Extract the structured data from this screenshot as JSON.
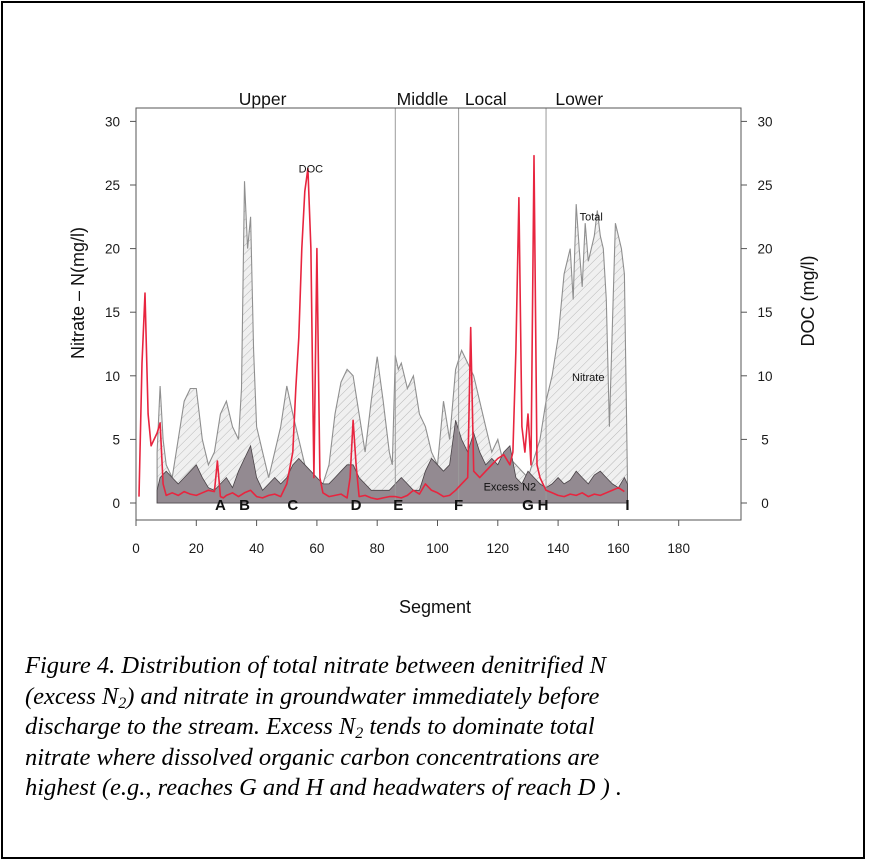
{
  "chart_data": {
    "type": "area",
    "xlabel": "Segment",
    "ylabel_left": "Nitrate – N(mg/l)",
    "ylabel_right": "DOC  (mg/l)",
    "xlim": [
      0,
      180
    ],
    "ylim_left": [
      0,
      30
    ],
    "ylim_right": [
      0,
      30
    ],
    "xticks": [
      0,
      20,
      40,
      60,
      80,
      100,
      120,
      140,
      160,
      180
    ],
    "yticks": [
      0,
      5,
      10,
      15,
      20,
      25,
      30
    ],
    "regions": [
      {
        "label": "Upper",
        "x": 42
      },
      {
        "label": "Middle",
        "x": 95
      },
      {
        "label": "Local",
        "x": 116
      },
      {
        "label": "Lower",
        "x": 147
      }
    ],
    "dividers": [
      86,
      107,
      136
    ],
    "reach_letters": [
      {
        "label": "A",
        "x": 28
      },
      {
        "label": "B",
        "x": 36
      },
      {
        "label": "C",
        "x": 52
      },
      {
        "label": "D",
        "x": 73
      },
      {
        "label": "E",
        "x": 87
      },
      {
        "label": "F",
        "x": 107
      },
      {
        "label": "G",
        "x": 130
      },
      {
        "label": "H",
        "x": 135
      },
      {
        "label": "I",
        "x": 163
      }
    ],
    "annotations": [
      {
        "text": "DOC",
        "x": 58,
        "y": 26
      },
      {
        "text": "Total",
        "x": 151,
        "y": 22.2
      },
      {
        "text": "Nitrate",
        "x": 150,
        "y": 9.6
      },
      {
        "text": "Excess N2",
        "x": 124,
        "y": 1.0
      }
    ],
    "series": [
      {
        "name": "Total",
        "x": [
          7,
          8,
          9,
          10,
          12,
          14,
          16,
          18,
          20,
          22,
          24,
          26,
          28,
          30,
          32,
          34,
          35,
          36,
          37,
          38,
          39,
          40,
          42,
          44,
          46,
          48,
          50,
          52,
          54,
          56,
          58,
          60,
          62,
          64,
          66,
          68,
          70,
          72,
          74,
          76,
          78,
          80,
          82,
          84,
          85,
          86,
          87,
          88,
          90,
          92,
          94,
          96,
          98,
          100,
          102,
          104,
          106,
          108,
          110,
          112,
          114,
          116,
          118,
          120,
          122,
          124,
          126,
          128,
          130,
          132,
          134,
          136,
          138,
          140,
          142,
          144,
          145,
          146,
          147,
          148,
          149,
          150,
          152,
          153,
          154,
          155,
          156,
          157,
          158,
          159,
          160,
          161,
          162,
          163
        ],
        "values": [
          4,
          9.2,
          5,
          3,
          2,
          5,
          8,
          9,
          9,
          5,
          3,
          4,
          7,
          8,
          6,
          5,
          9,
          25.3,
          20,
          22.5,
          12,
          6,
          4,
          2,
          4,
          6,
          9.2,
          7,
          5,
          3,
          2,
          1.5,
          1.5,
          3,
          7,
          9.5,
          10.5,
          10,
          7,
          4,
          8,
          11.5,
          8,
          4,
          3,
          11.6,
          10.5,
          11,
          9,
          10,
          7,
          6,
          4,
          3,
          8,
          5,
          10.5,
          12,
          11,
          10,
          8,
          6,
          4,
          5,
          3,
          3.5,
          3,
          2.5,
          2,
          3.5,
          5,
          8,
          10,
          13,
          18,
          20,
          16,
          23.5,
          20,
          17,
          22,
          19,
          21,
          23,
          21,
          20,
          16,
          6,
          14,
          22,
          21,
          20,
          18,
          2.2
        ]
      },
      {
        "name": "Excess N2",
        "x": [
          7,
          8,
          10,
          12,
          14,
          16,
          18,
          20,
          22,
          24,
          26,
          28,
          30,
          32,
          34,
          36,
          38,
          40,
          42,
          44,
          46,
          48,
          50,
          52,
          54,
          56,
          58,
          60,
          62,
          64,
          66,
          68,
          70,
          72,
          74,
          76,
          78,
          80,
          82,
          84,
          86,
          88,
          90,
          92,
          94,
          96,
          98,
          100,
          102,
          104,
          106,
          108,
          110,
          112,
          114,
          116,
          118,
          120,
          122,
          124,
          126,
          128,
          130,
          132,
          134,
          136,
          138,
          140,
          142,
          144,
          146,
          148,
          150,
          152,
          154,
          156,
          158,
          160,
          162,
          163
        ],
        "values": [
          1,
          2,
          2.5,
          2,
          1.5,
          2,
          2.5,
          3,
          2,
          1.2,
          1,
          1.5,
          2,
          1.2,
          2.5,
          3.5,
          4.5,
          2,
          1,
          1.5,
          2,
          1.5,
          2,
          3,
          3.5,
          3,
          2.5,
          2,
          1.5,
          1.5,
          2,
          2.5,
          3,
          3,
          2,
          1.5,
          1,
          1,
          1,
          1,
          1.5,
          2,
          1.5,
          1,
          1,
          2.5,
          3.5,
          3,
          2.5,
          3,
          6.5,
          5,
          4,
          5.5,
          4,
          3,
          3.5,
          3,
          4,
          4.5,
          2,
          1.5,
          2.5,
          2,
          1.5,
          1.2,
          1.5,
          2,
          1.5,
          1.8,
          2.5,
          2,
          1.5,
          2.2,
          2.5,
          2,
          1.5,
          1.2,
          2,
          1.5
        ]
      },
      {
        "name": "DOC",
        "x": [
          1,
          2,
          3,
          4,
          5,
          6,
          7,
          8,
          9,
          10,
          12,
          14,
          16,
          18,
          20,
          22,
          24,
          26,
          27,
          28,
          29,
          30,
          32,
          34,
          36,
          38,
          40,
          42,
          44,
          46,
          48,
          50,
          52,
          53,
          54,
          55,
          56,
          57,
          58,
          59,
          60,
          61,
          62,
          64,
          66,
          68,
          70,
          71,
          72,
          73,
          74,
          76,
          78,
          80,
          82,
          84,
          86,
          88,
          90,
          92,
          94,
          96,
          98,
          100,
          102,
          104,
          106,
          108,
          110,
          111,
          112,
          114,
          116,
          118,
          120,
          122,
          124,
          125,
          126,
          127,
          128,
          129,
          130,
          131,
          132,
          133,
          134,
          136,
          138,
          140,
          142,
          144,
          146,
          148,
          150,
          152,
          154,
          156,
          158,
          160,
          162
        ],
        "values": [
          0.5,
          11,
          16.5,
          7,
          4.5,
          5,
          5.5,
          6.3,
          1.5,
          0.6,
          0.8,
          0.6,
          0.9,
          0.7,
          0.6,
          0.8,
          1,
          0.9,
          3.3,
          0.5,
          0.4,
          0.6,
          0.8,
          0.5,
          0.8,
          1,
          0.5,
          0.4,
          0.6,
          0.7,
          0.5,
          1.5,
          4,
          9,
          13,
          20,
          24.5,
          26.3,
          20,
          2,
          20,
          2,
          0.8,
          0.5,
          0.6,
          0.7,
          0.4,
          2,
          6.5,
          3,
          0.5,
          0.6,
          0.4,
          0.3,
          0.4,
          0.5,
          0.5,
          0.4,
          0.6,
          1,
          0.7,
          1.5,
          1,
          0.8,
          0.5,
          0.6,
          1,
          1.5,
          2,
          13.8,
          2.5,
          2,
          2.5,
          3,
          3.5,
          3.8,
          3,
          4,
          12,
          24,
          6,
          4,
          7,
          3,
          27.3,
          3,
          2,
          1,
          0.8,
          0.6,
          0.5,
          0.7,
          0.6,
          0.8,
          0.5,
          0.7,
          0.6,
          0.8,
          1,
          1.2,
          0.9
        ]
      }
    ]
  },
  "caption": {
    "line1": "Figure 4.  Distribution of total nitrate between denitrified N",
    "line2_pre": "(excess N",
    "line2_sub": "2",
    "line2_post": ") and nitrate in groundwater immediately before",
    "line3_pre": "discharge to the stream. Excess N",
    "line3_sub": "2",
    "line3_post": " tends to dominate total",
    "line4": "nitrate where dissolved organic carbon concentrations are",
    "line5": "highest (e.g., reaches G and H and headwaters of reach D ) ."
  },
  "colors": {
    "total_fill": "#e9e9e9",
    "total_line": "#8f8f8f",
    "excess_fill": "#938a91",
    "excess_line": "#4a4448",
    "doc_line": "#e8253f",
    "axis": "#555555"
  }
}
